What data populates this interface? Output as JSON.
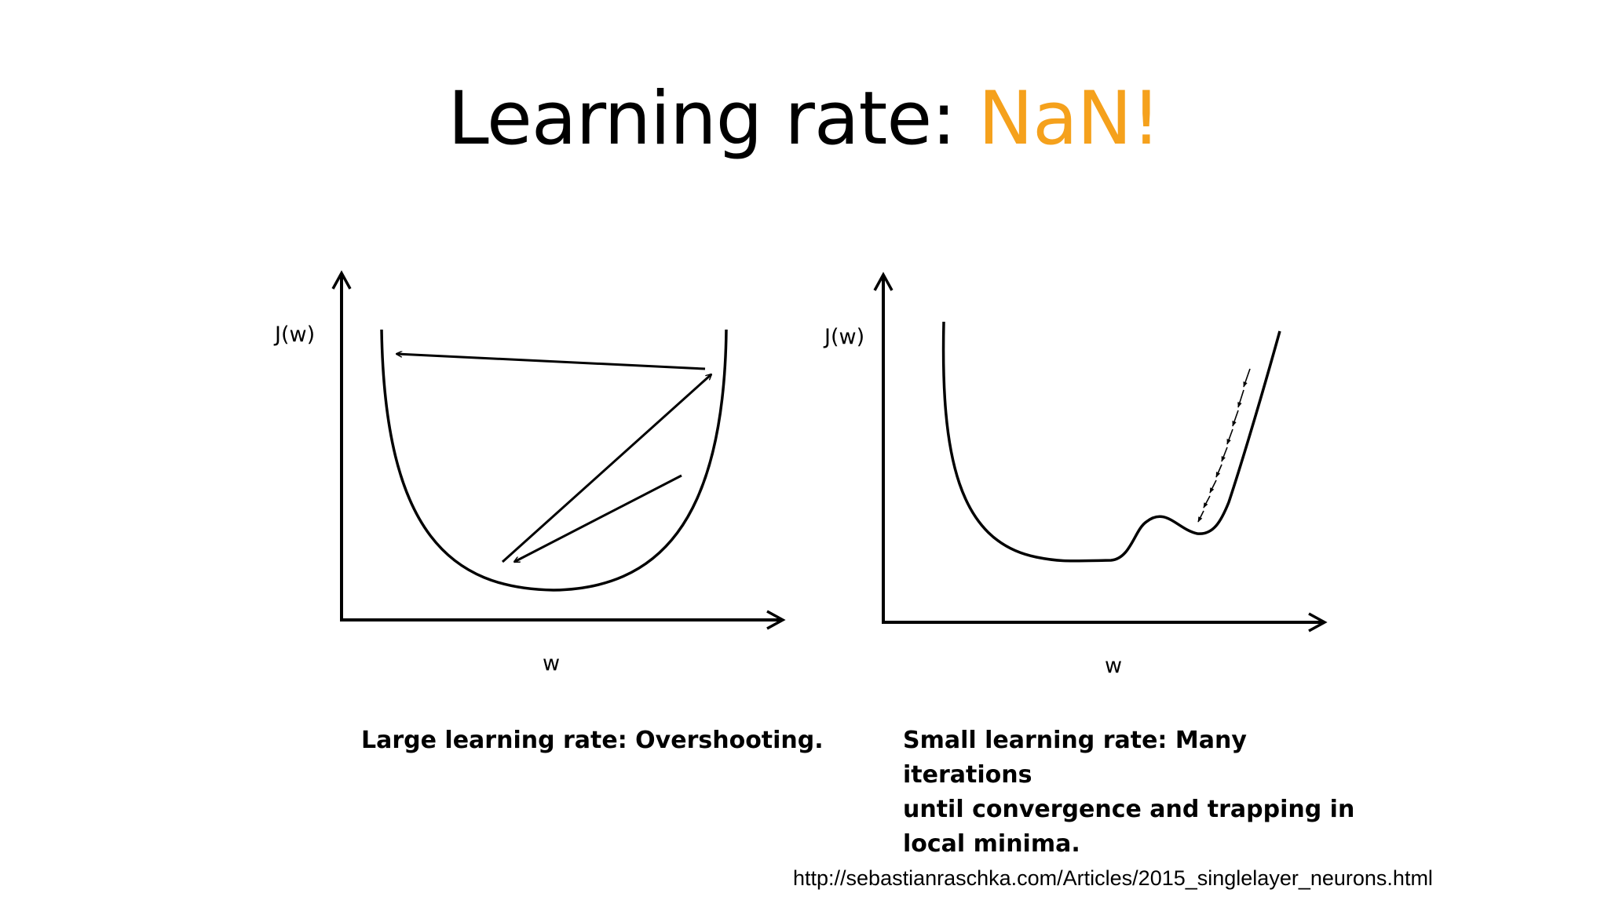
{
  "title": {
    "prefix": "Learning rate: ",
    "highlight": "NaN!",
    "highlight_color": "#f5a11c"
  },
  "diagrams": {
    "left": {
      "y_label": "J(w)",
      "x_label": "w",
      "caption": "Large learning rate: Overshooting."
    },
    "right": {
      "y_label": "J(w)",
      "x_label": "w",
      "caption_lines": [
        "Small learning rate: Many iterations",
        "until convergence and trapping in",
        "local minima."
      ]
    }
  },
  "source": "http://sebastianraschka.com/Articles/2015_singlelayer_neurons.html"
}
